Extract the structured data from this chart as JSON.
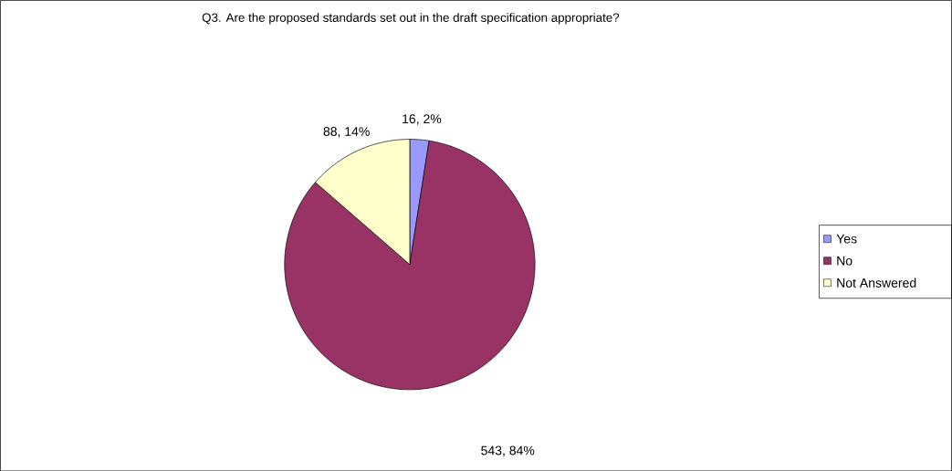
{
  "chart_data": {
    "type": "pie",
    "title": "Q3. Are the proposed standards set out in the draft specification appropriate?",
    "categories": [
      "Yes",
      "No",
      "Not Answered"
    ],
    "values": [
      16,
      543,
      88
    ],
    "colors": [
      "#9999ff",
      "#993366",
      "#ffffcc"
    ],
    "value_labels": [
      "16, 2%",
      "543, 84%",
      "88, 14%"
    ],
    "legend": "right"
  }
}
